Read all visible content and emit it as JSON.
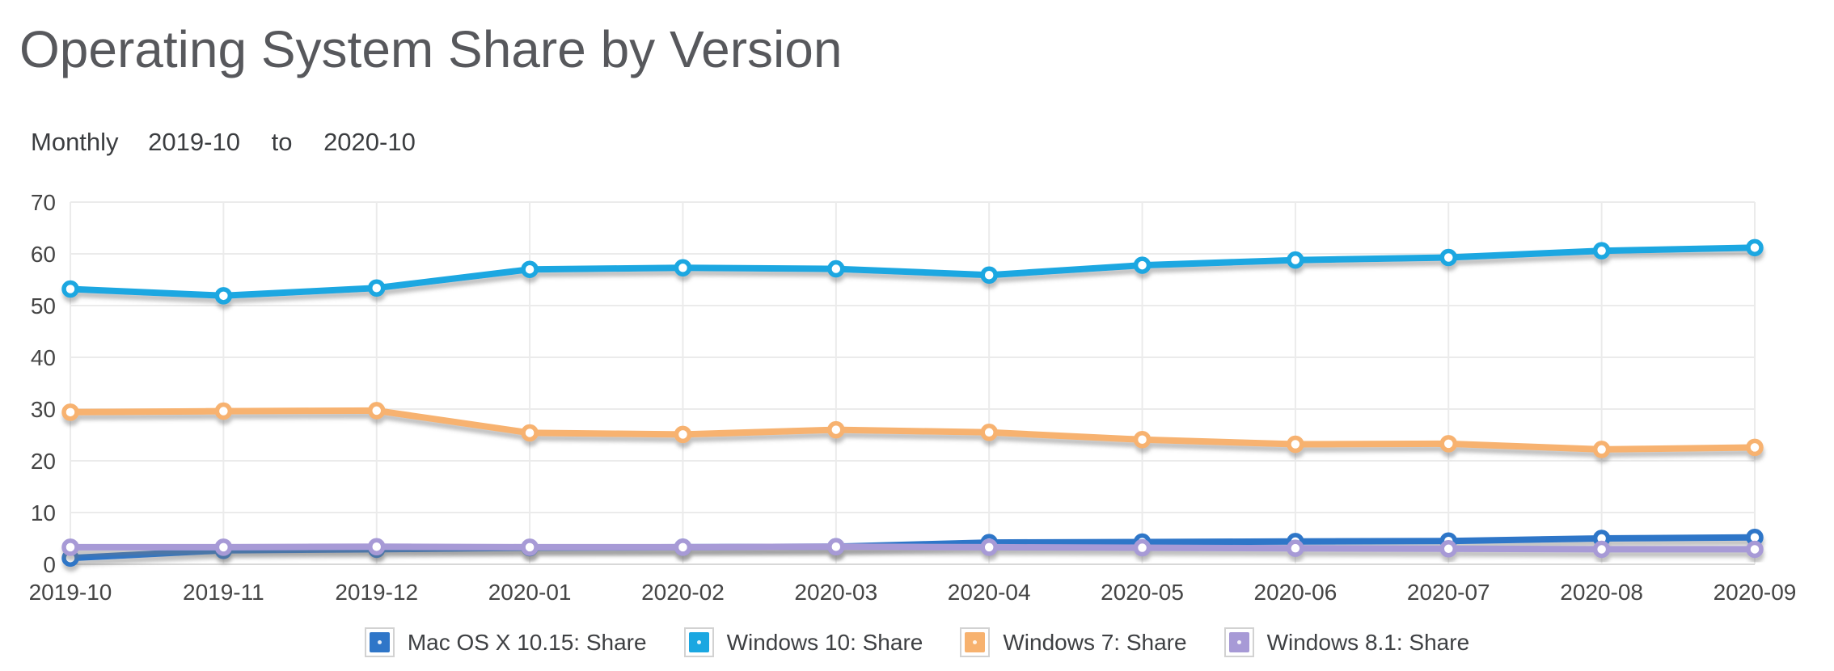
{
  "header": {
    "title": "Operating System Share by Version",
    "granularity": "Monthly",
    "range_from": "2019-10",
    "range_joiner": "to",
    "range_to": "2020-10"
  },
  "chart_data": {
    "type": "line",
    "title": "Operating System Share by Version",
    "subtitle": "Monthly 2019-10 to 2020-10",
    "x": [
      "2019-10",
      "2019-11",
      "2019-12",
      "2020-01",
      "2020-02",
      "2020-03",
      "2020-04",
      "2020-05",
      "2020-06",
      "2020-07",
      "2020-08",
      "2020-09"
    ],
    "series": [
      {
        "name": "Mac OS X 10.15: Share",
        "color": "#2f76c8",
        "values": [
          1.2,
          2.7,
          2.9,
          3.2,
          3.3,
          3.4,
          4.2,
          4.3,
          4.4,
          4.5,
          5.0,
          5.2
        ]
      },
      {
        "name": "Windows 10: Share",
        "color": "#1aa7e1",
        "values": [
          53.2,
          51.9,
          53.4,
          57.0,
          57.3,
          57.1,
          55.9,
          57.8,
          58.8,
          59.3,
          60.6,
          61.2
        ]
      },
      {
        "name": "Windows 7: Share",
        "color": "#f7b26f",
        "values": [
          29.4,
          29.6,
          29.7,
          25.4,
          25.1,
          26.0,
          25.5,
          24.1,
          23.2,
          23.3,
          22.2,
          22.6
        ]
      },
      {
        "name": "Windows 8.1: Share",
        "color": "#a79ad6",
        "values": [
          3.3,
          3.3,
          3.4,
          3.3,
          3.3,
          3.4,
          3.3,
          3.2,
          3.1,
          3.0,
          2.9,
          2.9
        ]
      }
    ],
    "ylim": [
      0,
      70
    ],
    "yticks": [
      0,
      10,
      20,
      30,
      40,
      50,
      60,
      70
    ],
    "grid": true,
    "legend_position": "bottom",
    "colors": {
      "grid_line": "#ebebeb",
      "axis_line": "#d8d8d8",
      "tick_label": "#454545",
      "title_text": "#57585c",
      "subtitle_text": "#3b3d40",
      "legend_text": "#3e4043"
    }
  }
}
